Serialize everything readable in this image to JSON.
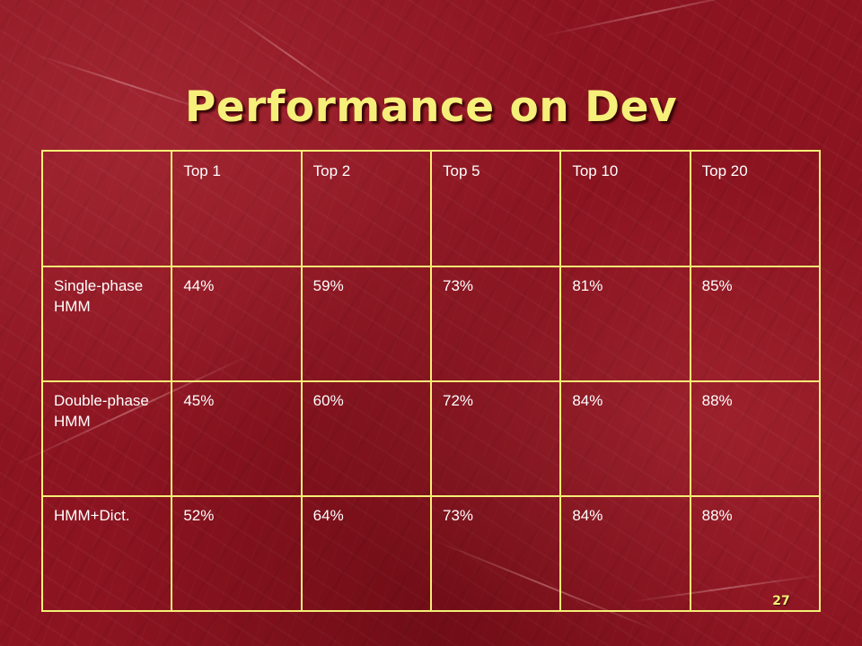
{
  "slide": {
    "title": "Performance on Dev",
    "page_number": "27"
  },
  "table": {
    "header": [
      "",
      "Top 1",
      "Top 2",
      "Top 5",
      "Top 10",
      "Top 20"
    ],
    "rows": [
      [
        "Single-phase HMM",
        "44%",
        "59%",
        "73%",
        "81%",
        "85%"
      ],
      [
        "Double-phase HMM",
        "45%",
        "60%",
        "72%",
        "84%",
        "88%"
      ],
      [
        "HMM+Dict.",
        "52%",
        "64%",
        "73%",
        "84%",
        "88%"
      ]
    ]
  },
  "colors": {
    "background": "#8c1420",
    "title_text": "#f6f07a",
    "table_border": "#f4ee76",
    "cell_text": "#ffffff"
  }
}
